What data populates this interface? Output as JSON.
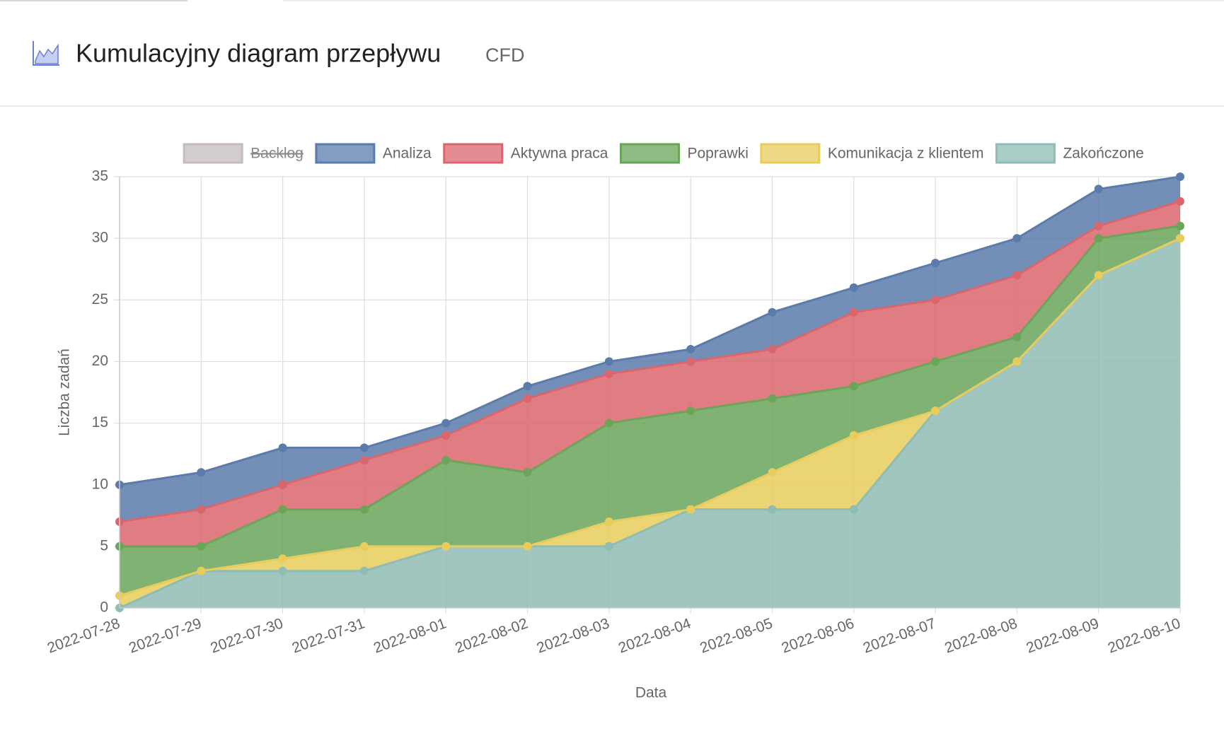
{
  "chart_data": {
    "type": "stacked_area",
    "title": "Kumulacyjny diagram przepływu",
    "subtitle": "CFD",
    "x_label": "Data",
    "y_label": "Liczba zadań",
    "categories": [
      "2022-07-28",
      "2022-07-29",
      "2022-07-30",
      "2022-07-31",
      "2022-08-01",
      "2022-08-02",
      "2022-08-03",
      "2022-08-04",
      "2022-08-05",
      "2022-08-06",
      "2022-08-07",
      "2022-08-08",
      "2022-08-09",
      "2022-08-10"
    ],
    "ylim": [
      0,
      35
    ],
    "yticks": [
      0,
      5,
      10,
      15,
      20,
      25,
      30,
      35
    ],
    "grid": true,
    "legend": "top",
    "series": [
      {
        "name": "Backlog",
        "color": "#c4bcbc",
        "hidden": true
      },
      {
        "name": "Analiza",
        "color": "#5b7bab",
        "values": [
          3,
          3,
          3,
          1,
          1,
          1,
          1,
          1,
          3,
          2,
          3,
          3,
          3,
          2
        ]
      },
      {
        "name": "Aktywna praca",
        "color": "#d9666c",
        "values": [
          2,
          3,
          2,
          4,
          2,
          6,
          4,
          4,
          4,
          6,
          5,
          5,
          1,
          2
        ]
      },
      {
        "name": "Poprawki",
        "color": "#6aa55a",
        "values": [
          4,
          2,
          4,
          3,
          7,
          6,
          8,
          8,
          6,
          4,
          4,
          2,
          3,
          1
        ]
      },
      {
        "name": "Komunikacja z klientem",
        "color": "#e8cc5c",
        "values": [
          1,
          0,
          1,
          2,
          0,
          0,
          2,
          0,
          3,
          6,
          0,
          0,
          0,
          0
        ]
      },
      {
        "name": "Zakończone",
        "color": "#8fbcb4",
        "values": [
          0,
          3,
          3,
          3,
          5,
          5,
          5,
          8,
          8,
          8,
          16,
          20,
          27,
          30
        ]
      }
    ]
  }
}
